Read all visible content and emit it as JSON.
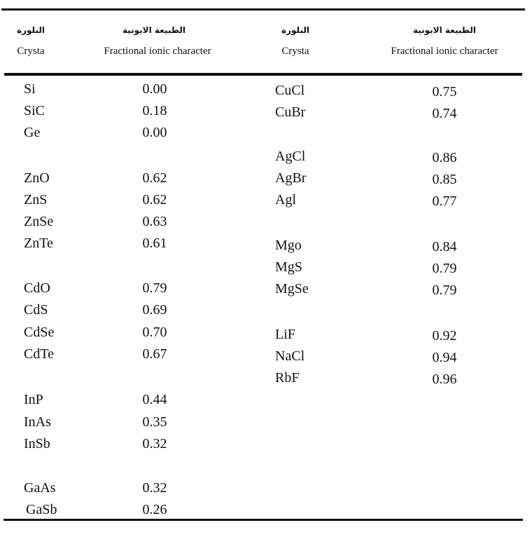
{
  "headers": {
    "crystal_ar": "البلورة",
    "crystal_en": "Crysta",
    "ionic_ar": "الطبيعة الايونية",
    "ionic_en": "Fractional ionic character"
  },
  "left_rows": [
    {
      "crystal": "Si",
      "value": "0.00"
    },
    {
      "crystal": "SiC",
      "value": "0.18"
    },
    {
      "crystal": "Ge",
      "value": "0.00"
    },
    {
      "crystal": "ZnO",
      "value": "0.62"
    },
    {
      "crystal": "ZnS",
      "value": "0.62"
    },
    {
      "crystal": "ZnSe",
      "value": "0.63"
    },
    {
      "crystal": "ZnTe",
      "value": "0.61"
    },
    {
      "crystal": "CdO",
      "value": "0.79"
    },
    {
      "crystal": "CdS",
      "value": "0.69"
    },
    {
      "crystal": "CdSe",
      "value": "0.70"
    },
    {
      "crystal": "CdTe",
      "value": "0.67"
    },
    {
      "crystal": "InP",
      "value": "0.44"
    },
    {
      "crystal": "InAs",
      "value": "0.35"
    },
    {
      "crystal": "InSb",
      "value": "0.32"
    },
    {
      "crystal": "GaAs",
      "value": "0.32"
    },
    {
      "crystal": "GaSb",
      "value": "0.26"
    }
  ],
  "right_rows": [
    {
      "crystal": "CuCl",
      "value": "0.75"
    },
    {
      "crystal": "CuBr",
      "value": "0.74"
    },
    {
      "crystal": "AgCl",
      "value": "0.86"
    },
    {
      "crystal": "AgBr",
      "value": "0.85"
    },
    {
      "crystal": "Agl",
      "value": "0.77"
    },
    {
      "crystal": "Mgo",
      "value": "0.84"
    },
    {
      "crystal": "MgS",
      "value": "0.79"
    },
    {
      "crystal": "MgSe",
      "value": "0.79"
    },
    {
      "crystal": "LiF",
      "value": "0.92"
    },
    {
      "crystal": "NaCl",
      "value": "0.94"
    },
    {
      "crystal": "RbF",
      "value": "0.96"
    }
  ]
}
